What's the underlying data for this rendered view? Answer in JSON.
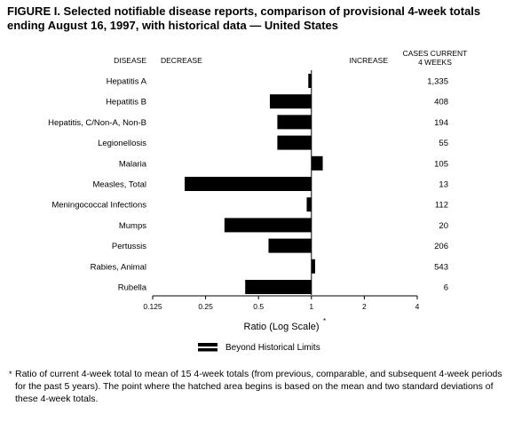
{
  "chart_data": {
    "type": "bar",
    "orientation": "horizontal",
    "title": "FIGURE I. Selected notifiable disease reports, comparison of provisional 4-week totals ending August 16, 1997, with historical data — United States",
    "header_disease": "DISEASE",
    "header_decrease": "DECREASE",
    "header_increase": "INCREASE",
    "header_cases_line1": "CASES CURRENT",
    "header_cases_line2": "4 WEEKS",
    "categories": [
      "Hepatitis A",
      "Hepatitis B",
      "Hepatitis, C/Non-A, Non-B",
      "Legionellosis",
      "Malaria",
      "Measles, Total",
      "Meningococcal Infections",
      "Mumps",
      "Pertussis",
      "Rabies, Animal",
      "Rubella"
    ],
    "series": [
      {
        "values": [
          0.96,
          0.58,
          0.64,
          0.64,
          1.16,
          0.19,
          0.94,
          0.32,
          0.57,
          1.05,
          0.42
        ]
      }
    ],
    "cases_current_4_weeks": [
      "1,335",
      "408",
      "194",
      "55",
      "105",
      "13",
      "112",
      "20",
      "206",
      "543",
      "6"
    ],
    "xlabel": "Ratio (Log Scale)",
    "xlabel_marker": "*",
    "x_scale": "log2",
    "xlim": [
      0.125,
      4
    ],
    "reference_line": 1,
    "x_ticks": [
      0.125,
      0.25,
      0.5,
      1,
      2,
      4
    ],
    "x_tick_labels": [
      "0.125",
      "0.25",
      "0.5",
      "1",
      "2",
      "4"
    ],
    "legend_label": "Beyond Historical Limits",
    "bar_color": "#000000"
  },
  "footnote": {
    "marker": "*",
    "text": "Ratio of current 4-week total to mean of 15 4-week totals (from previous, comparable, and subsequent 4-week periods for the past 5 years). The point where the hatched area begins is based on the mean and two standard deviations of these 4-week totals."
  }
}
